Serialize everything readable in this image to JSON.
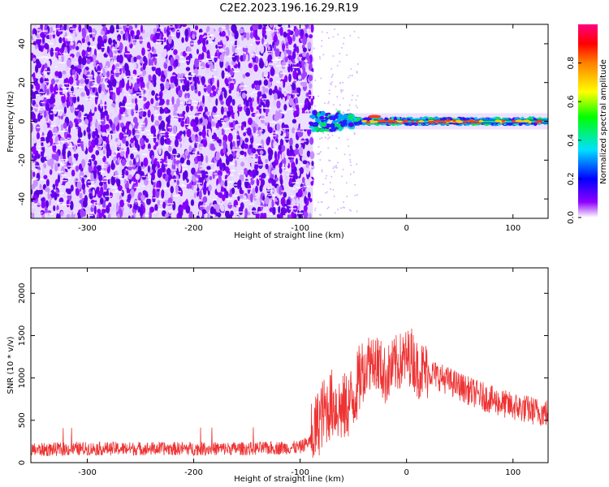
{
  "figure": {
    "title": "C2E2.2023.196.16.29.R19"
  },
  "colors": {
    "background": "#ffffff",
    "axes": "#000000",
    "snr_line": "#ee3333",
    "spectrum_low": "#7f00ff",
    "spectrum_high": "#ff0000"
  },
  "chart_data": [
    {
      "type": "heatmap",
      "xlabel": "Height of straight line (km)",
      "ylabel": "Frequency (Hz)",
      "xlim": [
        -353,
        133
      ],
      "ylim": [
        -50,
        50
      ],
      "x_ticks": [
        -300,
        -200,
        -100,
        0,
        100
      ],
      "y_ticks": [
        -40,
        -20,
        0,
        20,
        40
      ],
      "colorbar": {
        "label": "Normalized spectral amplitude",
        "range": [
          0,
          1
        ],
        "ticks": [
          "0.0",
          "0.2",
          "0.4",
          "0.6",
          "0.8"
        ],
        "colormap": "rainbow (purple-blue-cyan-green-yellow-red-magenta)"
      },
      "features": {
        "noise_region_x": [
          -353,
          -88
        ],
        "sparse_noise_x": [
          -88,
          -45
        ],
        "signal_onset_x": -100,
        "signal_frequency_hz": 0,
        "signal_peak_region_x": [
          -40,
          20
        ]
      }
    },
    {
      "type": "line",
      "xlabel": "Height of straight line (km)",
      "ylabel": "SNR (10 * v/v)",
      "xlim": [
        -353,
        133
      ],
      "ylim": [
        0,
        2300
      ],
      "x_ticks": [
        -300,
        -200,
        -100,
        0,
        100
      ],
      "y_ticks": [
        0,
        500,
        1000,
        1500,
        2000
      ],
      "series": [
        {
          "x": [
            -353,
            -300,
            -250,
            -200,
            -150,
            -100,
            -90,
            -80,
            -70,
            -60,
            -50,
            -40,
            -30,
            -20,
            -10,
            0,
            5,
            10,
            20,
            30,
            40,
            50,
            60,
            70,
            80,
            90,
            100,
            110,
            120,
            133
          ],
          "y": [
            150,
            165,
            165,
            165,
            165,
            180,
            260,
            560,
            700,
            620,
            760,
            1150,
            1250,
            1020,
            1160,
            1230,
            1260,
            1100,
            1080,
            1020,
            960,
            900,
            840,
            790,
            740,
            700,
            660,
            640,
            610,
            580
          ]
        }
      ]
    }
  ]
}
